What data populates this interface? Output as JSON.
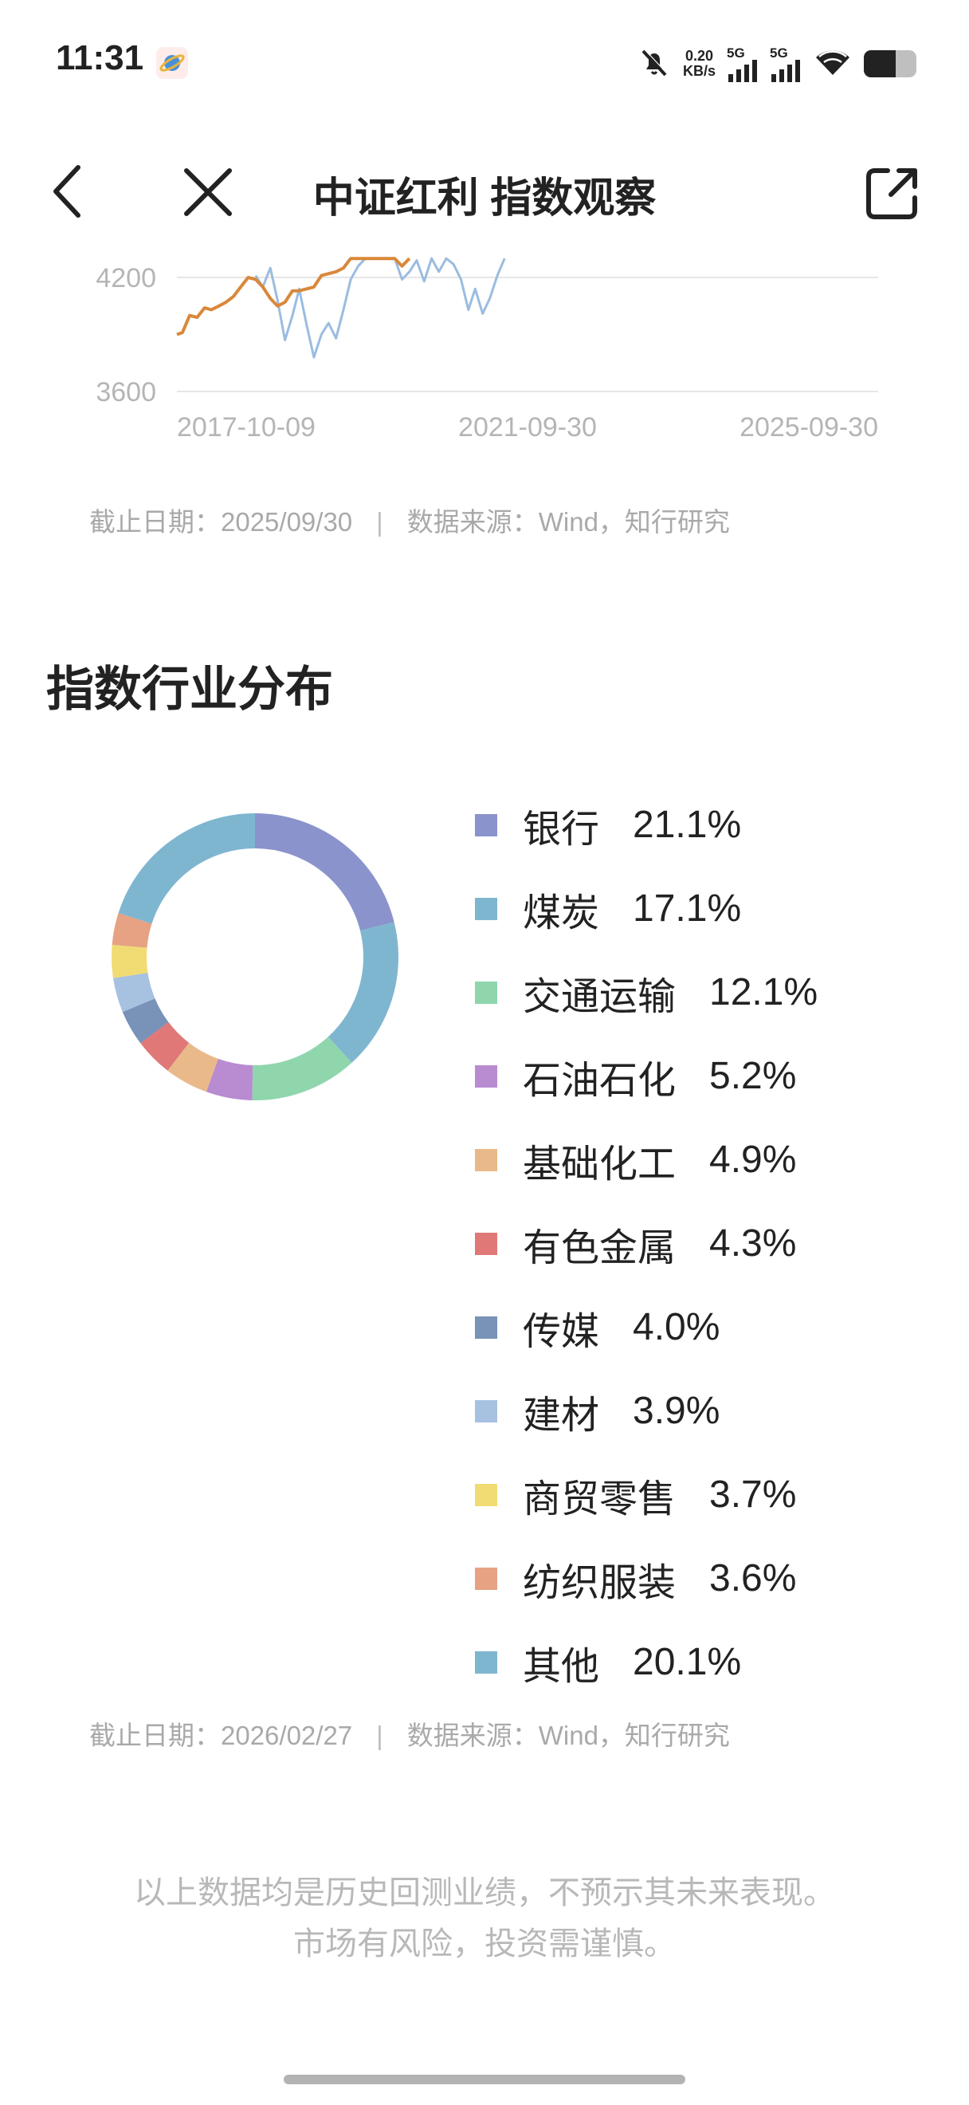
{
  "status_bar": {
    "time": "11:31",
    "net_speed_value": "0.20",
    "net_speed_unit": "KB/s",
    "signal1_label": "5G",
    "signal2_label": "5G",
    "battery_level": 0.6,
    "icons": [
      "app-icon",
      "mute-bell-icon",
      "signal-icon",
      "signal-icon",
      "wifi-icon",
      "battery-icon"
    ]
  },
  "header": {
    "title": "中证红利 指数观察",
    "icons": [
      "back-icon",
      "close-icon",
      "share-icon"
    ]
  },
  "chart_data": {
    "type": "line",
    "y_ticks": [
      "4200",
      "3600"
    ],
    "x_ticks": [
      "2017-10-09",
      "2021-09-30",
      "2025-09-30"
    ],
    "ylim": [
      3600,
      4800
    ],
    "grid": true,
    "series": [
      {
        "color": "#9bbce0",
        "values": [
          [
            "2018-09-01",
            4210
          ],
          [
            "2018-10-01",
            4150
          ],
          [
            "2018-11-01",
            4250
          ],
          [
            "2018-12-01",
            4080
          ],
          [
            "2019-01-01",
            3870
          ],
          [
            "2019-02-01",
            4000
          ],
          [
            "2019-03-01",
            4140
          ],
          [
            "2019-04-01",
            3950
          ],
          [
            "2019-05-01",
            3780
          ],
          [
            "2019-06-01",
            3900
          ],
          [
            "2019-07-01",
            3960
          ],
          [
            "2019-08-01",
            3880
          ],
          [
            "2019-09-01",
            4030
          ],
          [
            "2019-10-01",
            4190
          ],
          [
            "2019-11-01",
            4260
          ],
          [
            "2019-12-01",
            4300
          ],
          [
            "2020-04-01",
            4300
          ],
          [
            "2020-05-01",
            4190
          ],
          [
            "2020-06-01",
            4230
          ],
          [
            "2020-07-01",
            4290
          ],
          [
            "2020-08-01",
            4180
          ],
          [
            "2020-09-01",
            4300
          ],
          [
            "2020-10-01",
            4230
          ],
          [
            "2020-11-01",
            4300
          ],
          [
            "2020-12-01",
            4270
          ],
          [
            "2021-01-01",
            4190
          ],
          [
            "2021-02-01",
            4030
          ],
          [
            "2021-03-01",
            4140
          ],
          [
            "2021-04-01",
            4010
          ],
          [
            "2021-05-01",
            4090
          ],
          [
            "2021-06-01",
            4210
          ],
          [
            "2021-07-01",
            4300
          ]
        ]
      },
      {
        "color": "#d9883a",
        "values": [
          [
            "2017-10-09",
            3900
          ],
          [
            "2017-11-01",
            3910
          ],
          [
            "2017-12-01",
            4000
          ],
          [
            "2018-01-01",
            3990
          ],
          [
            "2018-02-01",
            4040
          ],
          [
            "2018-03-01",
            4030
          ],
          [
            "2018-04-01",
            4050
          ],
          [
            "2018-05-01",
            4070
          ],
          [
            "2018-06-01",
            4100
          ],
          [
            "2018-07-01",
            4150
          ],
          [
            "2018-08-01",
            4200
          ],
          [
            "2018-09-01",
            4190
          ],
          [
            "2018-10-01",
            4150
          ],
          [
            "2018-11-01",
            4090
          ],
          [
            "2018-12-01",
            4050
          ],
          [
            "2019-01-01",
            4070
          ],
          [
            "2019-02-01",
            4130
          ],
          [
            "2019-03-01",
            4130
          ],
          [
            "2019-04-01",
            4140
          ],
          [
            "2019-05-01",
            4150
          ],
          [
            "2019-06-01",
            4210
          ],
          [
            "2019-07-01",
            4220
          ],
          [
            "2019-08-01",
            4230
          ],
          [
            "2019-09-01",
            4250
          ],
          [
            "2019-10-01",
            4300
          ],
          [
            "2019-11-01",
            4300
          ],
          [
            "2020-04-01",
            4300
          ],
          [
            "2020-05-01",
            4260
          ],
          [
            "2020-06-01",
            4300
          ]
        ]
      }
    ]
  },
  "chart_footnote": {
    "date": "截止日期：2025/09/30",
    "separator": "|",
    "source": "数据来源：Wind，知行研究"
  },
  "industry_section": {
    "title": "指数行业分布"
  },
  "industry_chart": {
    "type": "pie",
    "slices": [
      {
        "name": "银行",
        "value": 21.1,
        "label": "21.1%",
        "color": "#8a93cc"
      },
      {
        "name": "煤炭",
        "value": 17.1,
        "label": "17.1%",
        "color": "#7fb6cf"
      },
      {
        "name": "交通运输",
        "value": 12.1,
        "label": "12.1%",
        "color": "#8fd6ad"
      },
      {
        "name": "石油石化",
        "value": 5.2,
        "label": "5.2%",
        "color": "#b98bd1"
      },
      {
        "name": "基础化工",
        "value": 4.9,
        "label": "4.9%",
        "color": "#e9b98a"
      },
      {
        "name": "有色金属",
        "value": 4.3,
        "label": "4.3%",
        "color": "#e07878"
      },
      {
        "name": "传媒",
        "value": 4.0,
        "label": "4.0%",
        "color": "#7892b8"
      },
      {
        "name": "建材",
        "value": 3.9,
        "label": "3.9%",
        "color": "#a7c1e1"
      },
      {
        "name": "商贸零售",
        "value": 3.7,
        "label": "3.7%",
        "color": "#f0dc72"
      },
      {
        "name": "纺织服装",
        "value": 3.6,
        "label": "3.6%",
        "color": "#e6a283"
      },
      {
        "name": "其他",
        "value": 20.1,
        "label": "20.1%",
        "color": "#7fb6cf"
      }
    ]
  },
  "industry_footnote": {
    "date": "截止日期：2026/02/27",
    "separator": "|",
    "source": "数据来源：Wind，知行研究"
  },
  "disclaimer": {
    "line1": "以上数据均是历史回测业绩，不预示其未来表现。",
    "line2": "市场有风险，投资需谨慎。"
  }
}
